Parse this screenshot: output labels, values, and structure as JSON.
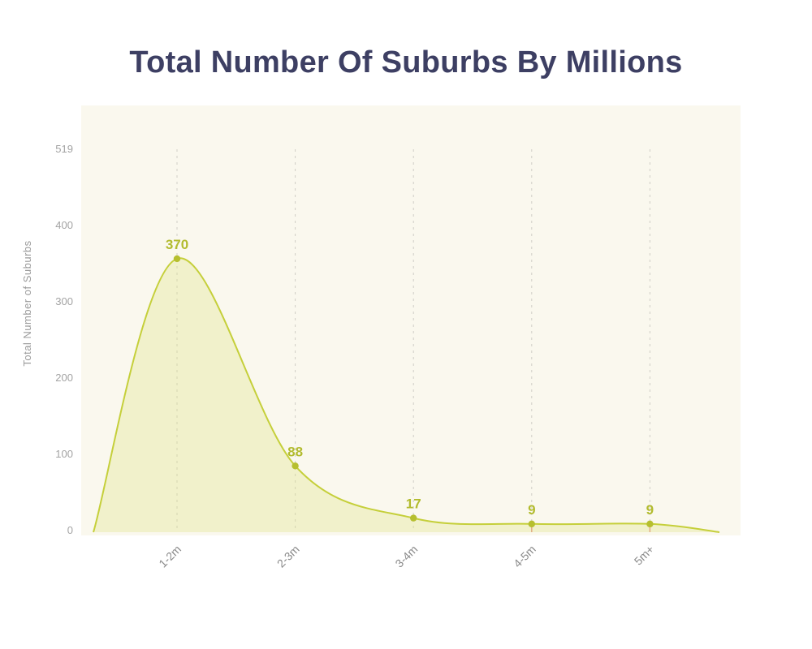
{
  "chart_data": {
    "type": "area",
    "title": "Total Number Of Suburbs By Millions",
    "ylabel": "Total Number of Suburbs",
    "xlabel": "",
    "categories": [
      "1-2m",
      "2-3m",
      "3-4m",
      "4-5m",
      "5m+"
    ],
    "values": [
      370,
      88,
      17,
      9,
      9
    ],
    "yticks": [
      0,
      100,
      200,
      300,
      400,
      519
    ],
    "ylim": [
      0,
      519
    ],
    "grid": "vertical-dashed",
    "legend": "none",
    "smooth_curve": true,
    "colors": {
      "title": "#3d3f63",
      "line": "#c5cf3a",
      "fill": "rgba(223,227,130,0.32)",
      "point": "#b6bf2f",
      "value_label": "#b2bb2e",
      "axis_text": "#a3a3a3",
      "category_text": "#8a8a8a",
      "gridline": "#d0cec6",
      "panel_background": "#faf8ee",
      "baseline_accent": "#e08b7d",
      "page_background": "#ffffff"
    }
  }
}
